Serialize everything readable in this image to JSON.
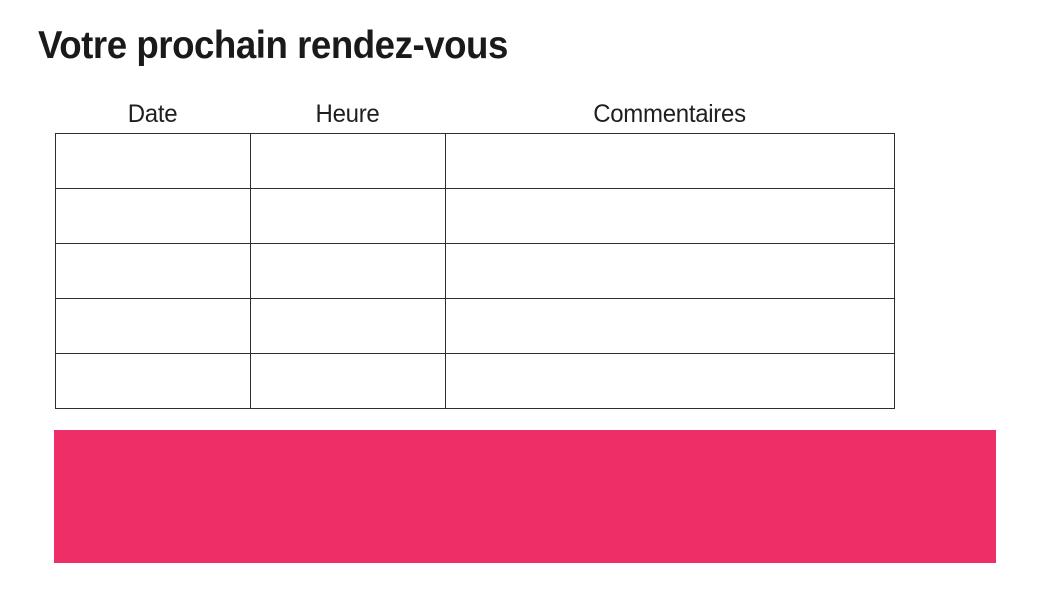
{
  "page": {
    "title": "Votre prochain rendez-vous"
  },
  "table": {
    "headers": [
      "Date",
      "Heure",
      "Commentaires"
    ],
    "rows": [
      [
        "",
        "",
        ""
      ],
      [
        "",
        "",
        ""
      ],
      [
        "",
        "",
        ""
      ],
      [
        "",
        "",
        ""
      ],
      [
        "",
        "",
        ""
      ]
    ]
  },
  "banner": {
    "text": "",
    "color": "#ED2E67"
  },
  "colors": {
    "accent_pink": "#ED2E67",
    "table_border": "#2e2e2e",
    "text": "#1a1a1a",
    "background": "#ffffff"
  }
}
